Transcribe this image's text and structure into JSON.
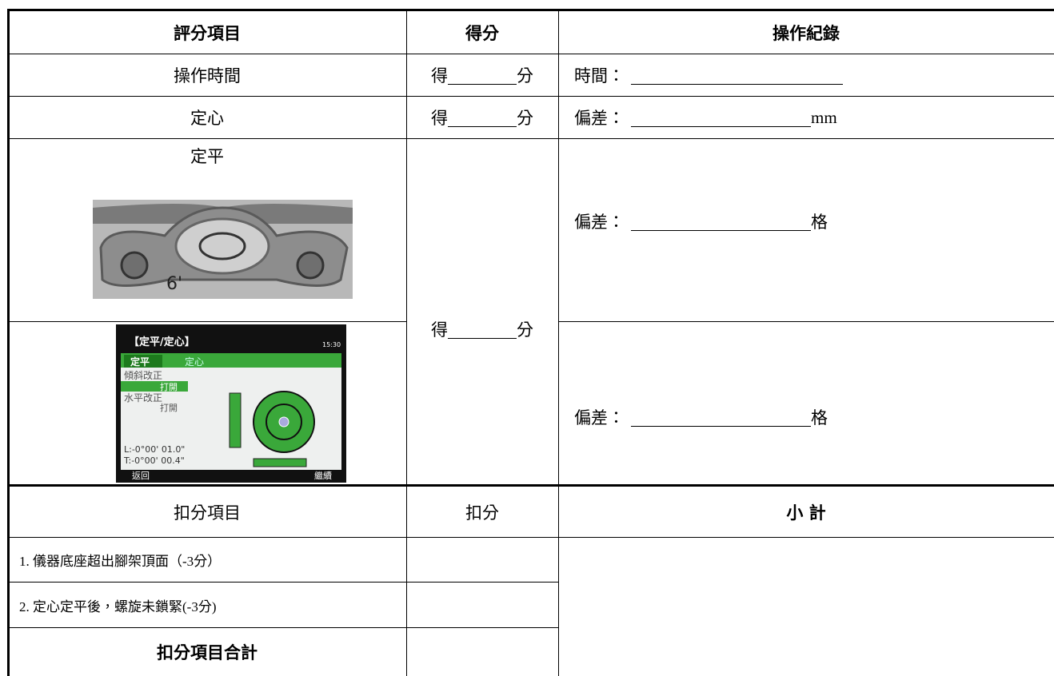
{
  "table": {
    "header": [
      "評分項目",
      "得分",
      "操作紀錄"
    ],
    "rows": [
      {
        "item": "操作時間",
        "score": [
          "得",
          "分"
        ],
        "record": {
          "label": "時間："
        }
      },
      {
        "item": "定心",
        "score": [
          "得",
          "分"
        ],
        "record": {
          "label": "偏差：",
          "unit": "mm"
        }
      },
      {
        "item": "定平",
        "score": [
          "得",
          "分"
        ],
        "bubble_image": {
          "mark": "6'"
        },
        "screen_image": {
          "title": "【定平/定心】",
          "clock": "15:30",
          "tabs": [
            "定平",
            "定心"
          ],
          "settings": [
            "傾斜改正",
            "打開",
            "水平改正",
            "打開"
          ],
          "readings": [
            "L:-0°00' 01.0\"",
            "T:-0°00' 00.4\""
          ],
          "buttons": [
            "返回",
            "繼續"
          ]
        },
        "records": [
          {
            "label": "偏差：",
            "unit": "格"
          },
          {
            "label": "偏差：",
            "unit": "格"
          }
        ]
      }
    ],
    "deduction_header": [
      "扣分項目",
      "扣分",
      "小 計"
    ],
    "deductions": [
      "1. 儀器底座超出腳架頂面（-3分）",
      "2. 定心定平後，螺旋未鎖緊(-3分)"
    ],
    "total": "扣分項目合計"
  }
}
